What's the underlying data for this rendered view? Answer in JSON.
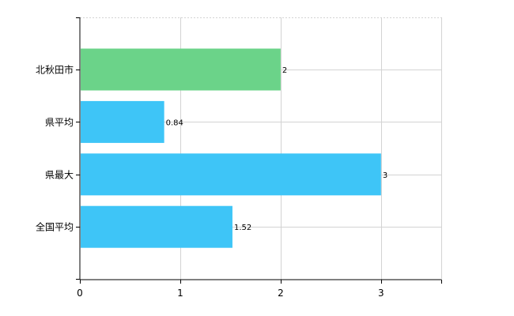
{
  "chart_data": {
    "type": "bar",
    "orientation": "horizontal",
    "categories": [
      "北秋田市",
      "県平均",
      "県最大",
      "全国平均"
    ],
    "values": [
      2,
      0.84,
      3,
      1.52
    ],
    "value_labels": [
      "2",
      "0.84",
      "3",
      "1.52"
    ],
    "colors": [
      "#6bd389",
      "#3ec5f7",
      "#3ec5f7",
      "#3ec5f7"
    ],
    "xlim": [
      0,
      3.6
    ],
    "x_ticks": [
      0,
      1,
      2,
      3
    ],
    "x_tick_labels": [
      "0",
      "1",
      "2",
      "3"
    ],
    "grid": true,
    "legend": "none"
  }
}
